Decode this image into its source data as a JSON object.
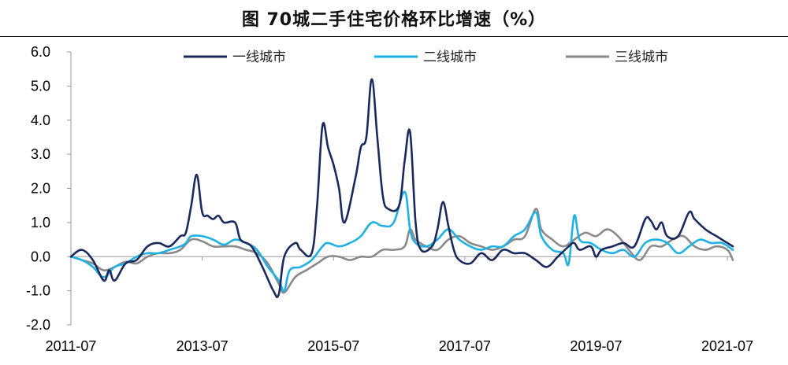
{
  "chart_data": {
    "type": "line",
    "title": "图 70城二手住宅价格环比增速（%）",
    "xlabel": "",
    "ylabel": "",
    "ylim": [
      -2.0,
      6.0
    ],
    "yticks": [
      "-2.0",
      "-1.0",
      "0.0",
      "1.0",
      "2.0",
      "3.0",
      "4.0",
      "5.0",
      "6.0"
    ],
    "xticks": [
      "2011-07",
      "2013-07",
      "2015-07",
      "2017-07",
      "2019-07",
      "2021-07"
    ],
    "x_start": "2011-07",
    "x_end": "2021-08",
    "legend_position": "top",
    "grid": false,
    "series": [
      {
        "name": "一线城市",
        "color": "#1b2a5e",
        "points": [
          [
            "2011-07",
            0.0
          ],
          [
            "2011-09",
            0.2
          ],
          [
            "2011-11",
            -0.1
          ],
          [
            "2012-01",
            -0.7
          ],
          [
            "2012-02",
            -0.4
          ],
          [
            "2012-03",
            -0.7
          ],
          [
            "2012-05",
            -0.2
          ],
          [
            "2012-07",
            -0.1
          ],
          [
            "2012-09",
            0.3
          ],
          [
            "2012-11",
            0.4
          ],
          [
            "2013-01",
            0.3
          ],
          [
            "2013-03",
            0.6
          ],
          [
            "2013-04",
            0.7
          ],
          [
            "2013-05",
            1.5
          ],
          [
            "2013-06",
            2.4
          ],
          [
            "2013-07",
            1.3
          ],
          [
            "2013-08",
            1.2
          ],
          [
            "2013-09",
            1.1
          ],
          [
            "2013-10",
            1.2
          ],
          [
            "2013-11",
            1.0
          ],
          [
            "2014-01",
            1.0
          ],
          [
            "2014-02",
            0.5
          ],
          [
            "2014-04",
            0.3
          ],
          [
            "2014-06",
            -0.3
          ],
          [
            "2014-08",
            -1.0
          ],
          [
            "2014-09",
            -1.1
          ],
          [
            "2014-10",
            0.0
          ],
          [
            "2014-12",
            0.4
          ],
          [
            "2015-01",
            0.2
          ],
          [
            "2015-03",
            0.1
          ],
          [
            "2015-04",
            1.5
          ],
          [
            "2015-05",
            3.85
          ],
          [
            "2015-06",
            3.2
          ],
          [
            "2015-07",
            2.7
          ],
          [
            "2015-08",
            2.0
          ],
          [
            "2015-09",
            1.0
          ],
          [
            "2015-11",
            2.3
          ],
          [
            "2015-12",
            3.2
          ],
          [
            "2016-01",
            3.5
          ],
          [
            "2016-02",
            5.2
          ],
          [
            "2016-03",
            3.5
          ],
          [
            "2016-04",
            1.8
          ],
          [
            "2016-05",
            1.4
          ],
          [
            "2016-07",
            1.5
          ],
          [
            "2016-08",
            2.8
          ],
          [
            "2016-09",
            3.65
          ],
          [
            "2016-10",
            1.0
          ],
          [
            "2016-11",
            0.2
          ],
          [
            "2017-01",
            0.3
          ],
          [
            "2017-02",
            0.8
          ],
          [
            "2017-03",
            1.6
          ],
          [
            "2017-04",
            0.9
          ],
          [
            "2017-05",
            0.2
          ],
          [
            "2017-06",
            -0.1
          ],
          [
            "2017-08",
            -0.2
          ],
          [
            "2017-10",
            0.1
          ],
          [
            "2017-12",
            -0.1
          ],
          [
            "2018-02",
            0.2
          ],
          [
            "2018-04",
            0.1
          ],
          [
            "2018-06",
            0.1
          ],
          [
            "2018-08",
            -0.1
          ],
          [
            "2018-10",
            -0.3
          ],
          [
            "2018-12",
            0.0
          ],
          [
            "2019-02",
            0.3
          ],
          [
            "2019-03",
            0.4
          ],
          [
            "2019-04",
            0.2
          ],
          [
            "2019-06",
            0.3
          ],
          [
            "2019-07",
            0.0
          ],
          [
            "2019-08",
            0.2
          ],
          [
            "2019-10",
            0.3
          ],
          [
            "2019-12",
            0.4
          ],
          [
            "2020-02",
            0.3
          ],
          [
            "2020-04",
            1.1
          ],
          [
            "2020-05",
            1.05
          ],
          [
            "2020-06",
            0.8
          ],
          [
            "2020-07",
            1.0
          ],
          [
            "2020-08",
            0.6
          ],
          [
            "2020-10",
            0.6
          ],
          [
            "2020-12",
            1.3
          ],
          [
            "2021-01",
            1.1
          ],
          [
            "2021-03",
            0.8
          ],
          [
            "2021-05",
            0.6
          ],
          [
            "2021-06",
            0.5
          ],
          [
            "2021-07",
            0.4
          ],
          [
            "2021-08",
            0.3
          ]
        ]
      },
      {
        "name": "二线城市",
        "color": "#1fb1e3",
        "points": [
          [
            "2011-07",
            0.0
          ],
          [
            "2011-09",
            -0.1
          ],
          [
            "2011-11",
            -0.3
          ],
          [
            "2012-01",
            -0.6
          ],
          [
            "2012-03",
            -0.3
          ],
          [
            "2012-05",
            -0.2
          ],
          [
            "2012-07",
            0.0
          ],
          [
            "2012-09",
            0.1
          ],
          [
            "2012-11",
            0.1
          ],
          [
            "2013-01",
            0.2
          ],
          [
            "2013-03",
            0.3
          ],
          [
            "2013-04",
            0.4
          ],
          [
            "2013-05",
            0.6
          ],
          [
            "2013-07",
            0.6
          ],
          [
            "2013-09",
            0.5
          ],
          [
            "2013-11",
            0.35
          ],
          [
            "2014-01",
            0.5
          ],
          [
            "2014-03",
            0.4
          ],
          [
            "2014-05",
            0.2
          ],
          [
            "2014-07",
            -0.3
          ],
          [
            "2014-09",
            -0.7
          ],
          [
            "2014-10",
            -1.0
          ],
          [
            "2014-11",
            -0.4
          ],
          [
            "2015-01",
            -0.3
          ],
          [
            "2015-03",
            -0.1
          ],
          [
            "2015-05",
            0.3
          ],
          [
            "2015-06",
            0.4
          ],
          [
            "2015-08",
            0.3
          ],
          [
            "2015-10",
            0.4
          ],
          [
            "2015-12",
            0.6
          ],
          [
            "2016-02",
            1.0
          ],
          [
            "2016-04",
            0.9
          ],
          [
            "2016-06",
            1.0
          ],
          [
            "2016-08",
            1.9
          ],
          [
            "2016-09",
            0.8
          ],
          [
            "2016-10",
            0.4
          ],
          [
            "2016-12",
            0.3
          ],
          [
            "2017-02",
            0.5
          ],
          [
            "2017-04",
            0.8
          ],
          [
            "2017-06",
            0.5
          ],
          [
            "2017-08",
            0.3
          ],
          [
            "2017-10",
            0.2
          ],
          [
            "2017-12",
            0.3
          ],
          [
            "2018-02",
            0.3
          ],
          [
            "2018-04",
            0.6
          ],
          [
            "2018-06",
            0.8
          ],
          [
            "2018-08",
            1.3
          ],
          [
            "2018-09",
            0.6
          ],
          [
            "2018-11",
            0.2
          ],
          [
            "2019-01",
            0.1
          ],
          [
            "2019-02",
            -0.2
          ],
          [
            "2019-03",
            1.2
          ],
          [
            "2019-04",
            0.5
          ],
          [
            "2019-06",
            0.4
          ],
          [
            "2019-08",
            0.2
          ],
          [
            "2019-10",
            0.1
          ],
          [
            "2019-12",
            0.2
          ],
          [
            "2020-02",
            0.0
          ],
          [
            "2020-04",
            0.4
          ],
          [
            "2020-06",
            0.5
          ],
          [
            "2020-08",
            0.4
          ],
          [
            "2020-10",
            0.1
          ],
          [
            "2020-12",
            0.3
          ],
          [
            "2021-02",
            0.5
          ],
          [
            "2021-04",
            0.4
          ],
          [
            "2021-06",
            0.4
          ],
          [
            "2021-08",
            0.2
          ]
        ]
      },
      {
        "name": "三线城市",
        "color": "#8a8a8a",
        "points": [
          [
            "2011-07",
            0.0
          ],
          [
            "2011-09",
            -0.1
          ],
          [
            "2011-11",
            -0.2
          ],
          [
            "2012-01",
            -0.4
          ],
          [
            "2012-03",
            -0.3
          ],
          [
            "2012-05",
            -0.15
          ],
          [
            "2012-07",
            -0.2
          ],
          [
            "2012-09",
            0.0
          ],
          [
            "2012-11",
            0.1
          ],
          [
            "2013-01",
            0.1
          ],
          [
            "2013-03",
            0.2
          ],
          [
            "2013-05",
            0.5
          ],
          [
            "2013-07",
            0.45
          ],
          [
            "2013-09",
            0.3
          ],
          [
            "2013-11",
            0.3
          ],
          [
            "2014-01",
            0.3
          ],
          [
            "2014-03",
            0.2
          ],
          [
            "2014-05",
            0.1
          ],
          [
            "2014-07",
            -0.2
          ],
          [
            "2014-09",
            -0.8
          ],
          [
            "2014-10",
            -1.05
          ],
          [
            "2014-12",
            -0.6
          ],
          [
            "2015-02",
            -0.4
          ],
          [
            "2015-04",
            -0.2
          ],
          [
            "2015-06",
            0.0
          ],
          [
            "2015-08",
            0.0
          ],
          [
            "2015-10",
            -0.1
          ],
          [
            "2015-12",
            0.0
          ],
          [
            "2016-02",
            0.0
          ],
          [
            "2016-04",
            0.2
          ],
          [
            "2016-06",
            0.2
          ],
          [
            "2016-08",
            0.3
          ],
          [
            "2016-09",
            0.8
          ],
          [
            "2016-10",
            0.5
          ],
          [
            "2016-12",
            0.3
          ],
          [
            "2017-02",
            0.2
          ],
          [
            "2017-04",
            0.5
          ],
          [
            "2017-06",
            0.6
          ],
          [
            "2017-08",
            0.4
          ],
          [
            "2017-10",
            0.3
          ],
          [
            "2017-12",
            0.2
          ],
          [
            "2018-02",
            0.3
          ],
          [
            "2018-04",
            0.5
          ],
          [
            "2018-06",
            0.6
          ],
          [
            "2018-08",
            1.4
          ],
          [
            "2018-09",
            0.8
          ],
          [
            "2018-11",
            0.5
          ],
          [
            "2019-01",
            0.3
          ],
          [
            "2019-03",
            0.5
          ],
          [
            "2019-05",
            0.7
          ],
          [
            "2019-07",
            0.6
          ],
          [
            "2019-09",
            0.8
          ],
          [
            "2019-11",
            0.6
          ],
          [
            "2020-01",
            0.2
          ],
          [
            "2020-03",
            -0.1
          ],
          [
            "2020-05",
            0.3
          ],
          [
            "2020-07",
            0.3
          ],
          [
            "2020-09",
            0.5
          ],
          [
            "2020-11",
            0.6
          ],
          [
            "2021-01",
            0.3
          ],
          [
            "2021-03",
            0.2
          ],
          [
            "2021-05",
            0.3
          ],
          [
            "2021-07",
            0.2
          ],
          [
            "2021-08",
            -0.1
          ]
        ]
      }
    ]
  }
}
